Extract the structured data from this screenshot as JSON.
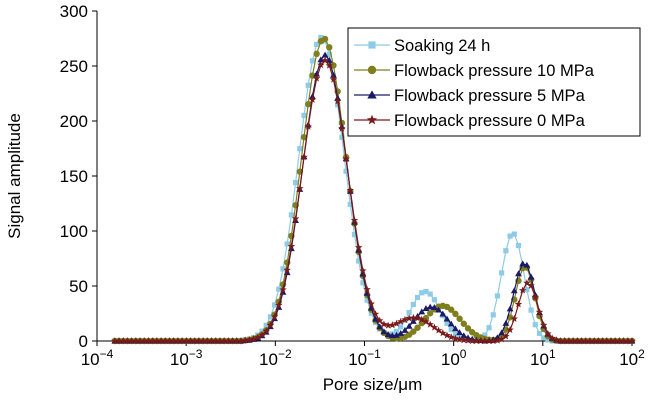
{
  "chart_data": {
    "type": "line",
    "title": "",
    "xlabel": "Pore size/μm",
    "ylabel": "Signal amplitude",
    "x_scale": "log",
    "xlim": [
      0.0001,
      100
    ],
    "ylim": [
      0,
      300
    ],
    "x_tick_labels": [
      {
        "base": "10",
        "exp": "−4"
      },
      {
        "base": "10",
        "exp": "−3"
      },
      {
        "base": "10",
        "exp": "−2"
      },
      {
        "base": "10",
        "exp": "−1"
      },
      {
        "base": "10",
        "exp": "0"
      },
      {
        "base": "10",
        "exp": "1"
      },
      {
        "base": "10",
        "exp": "2"
      }
    ],
    "y_tick_labels": [
      "0",
      "50",
      "100",
      "150",
      "200",
      "250",
      "300"
    ],
    "legend_position": "top-right",
    "grid": false,
    "series": [
      {
        "name": "Soaking 24 h",
        "color": "#8ecbe6",
        "marker": "square",
        "peaks": [
          {
            "center": 0.033,
            "amp": 276,
            "sigma": 0.255
          },
          {
            "center": 0.48,
            "amp": 45,
            "sigma": 0.17
          },
          {
            "center": 4.6,
            "amp": 98,
            "sigma": 0.13
          }
        ]
      },
      {
        "name": "Flowback pressure 10 MPa",
        "color": "#7f7f1f",
        "marker": "circle",
        "peaks": [
          {
            "center": 0.035,
            "amp": 275,
            "sigma": 0.25
          },
          {
            "center": 0.75,
            "amp": 32,
            "sigma": 0.2
          },
          {
            "center": 6.3,
            "amp": 68,
            "sigma": 0.11
          }
        ]
      },
      {
        "name": "Flowback pressure 5 MPa",
        "color": "#1a1a66",
        "marker": "triangle",
        "peaks": [
          {
            "center": 0.036,
            "amp": 260,
            "sigma": 0.25
          },
          {
            "center": 0.56,
            "amp": 31,
            "sigma": 0.19
          },
          {
            "center": 6.2,
            "amp": 71,
            "sigma": 0.12
          }
        ]
      },
      {
        "name": "Flowback pressure 0 MPa",
        "color": "#7a1a1a",
        "marker": "star",
        "peaks": [
          {
            "center": 0.036,
            "amp": 255,
            "sigma": 0.255
          },
          {
            "center": 0.36,
            "amp": 21,
            "sigma": 0.22
          },
          {
            "center": 6.8,
            "amp": 53,
            "sigma": 0.11
          }
        ]
      }
    ]
  }
}
